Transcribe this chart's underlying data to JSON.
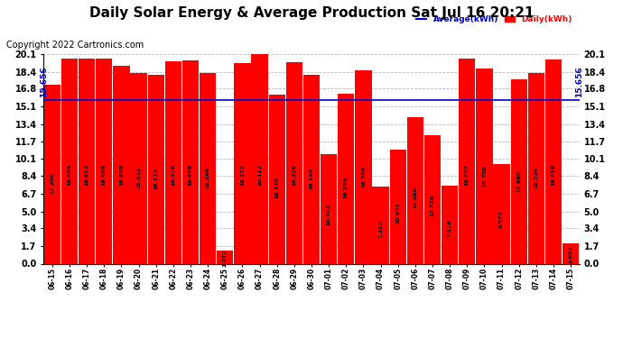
{
  "title": "Daily Solar Energy & Average Production Sat Jul 16 20:21",
  "copyright": "Copyright 2022 Cartronics.com",
  "legend_average": "Average(kWh)",
  "legend_daily": "Daily(kWh)",
  "average_value": 15.656,
  "average_label": "15.656",
  "categories": [
    "06-15",
    "06-16",
    "06-17",
    "06-18",
    "06-19",
    "06-20",
    "06-21",
    "06-22",
    "06-23",
    "06-24",
    "06-25",
    "06-26",
    "06-27",
    "06-28",
    "06-29",
    "06-30",
    "07-01",
    "07-02",
    "07-03",
    "07-04",
    "07-05",
    "07-06",
    "07-07",
    "07-08",
    "07-09",
    "07-10",
    "07-11",
    "07-12",
    "07-13",
    "07-14",
    "07-15"
  ],
  "values": [
    17.2,
    19.664,
    19.652,
    19.668,
    18.968,
    18.312,
    18.112,
    19.376,
    19.488,
    18.296,
    1.272,
    19.272,
    20.112,
    16.18,
    19.336,
    18.144,
    10.492,
    16.284,
    18.584,
    7.352,
    10.952,
    14.08,
    12.328,
    7.516,
    19.652,
    18.7,
    9.572,
    17.68,
    18.324,
    19.616,
    1.952
  ],
  "bar_color": "#ff0000",
  "average_line_color": "#0000cc",
  "yticks": [
    0.0,
    1.7,
    3.4,
    5.0,
    6.7,
    8.4,
    10.1,
    11.7,
    13.4,
    15.1,
    16.8,
    18.4,
    20.1
  ],
  "ymax": 20.1,
  "ymin": 0.0,
  "title_fontsize": 11,
  "copyright_fontsize": 7,
  "background_color": "#ffffff",
  "grid_color": "#aaaaaa"
}
